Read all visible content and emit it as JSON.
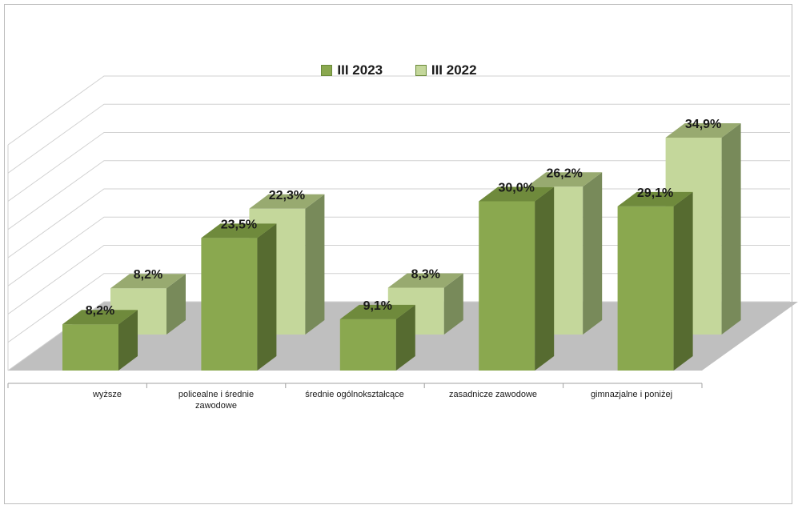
{
  "chart_data": {
    "type": "bar",
    "categories": [
      "wyższe",
      "policealne i średnie zawodowe",
      "średnie ogólnokształcące",
      "zasadnicze zawodowe",
      "gimnazjalne i poniżej"
    ],
    "series": [
      {
        "name": "III 2023",
        "values": [
          8.2,
          23.5,
          9.1,
          30.0,
          29.1
        ],
        "labels": [
          "8,2%",
          "23,5%",
          "9,1%",
          "30,0%",
          "29,1%"
        ],
        "color": "#8aa84f",
        "side_color": "#566b30",
        "top_color": "#6f8a3c"
      },
      {
        "name": "III 2022",
        "values": [
          8.2,
          22.3,
          8.3,
          26.2,
          34.9
        ],
        "labels": [
          "8,2%",
          "22,3%",
          "8,3%",
          "26,2%",
          "34,9%"
        ],
        "color": "#c4d79b",
        "side_color": "#788a5a",
        "top_color": "#98aa70"
      }
    ],
    "ylim": [
      0,
      40
    ],
    "grid": true,
    "legend": "top-center",
    "three_d": true,
    "floor_color": "#bfbfbf",
    "grid_color": "#d0d0d0"
  },
  "category_label_lines": [
    [
      "wyższe"
    ],
    [
      "policealne i średnie",
      "zawodowe"
    ],
    [
      "średnie ogólnokształcące"
    ],
    [
      "zasadnicze zawodowe"
    ],
    [
      "gimnazjalne i poniżej"
    ]
  ]
}
